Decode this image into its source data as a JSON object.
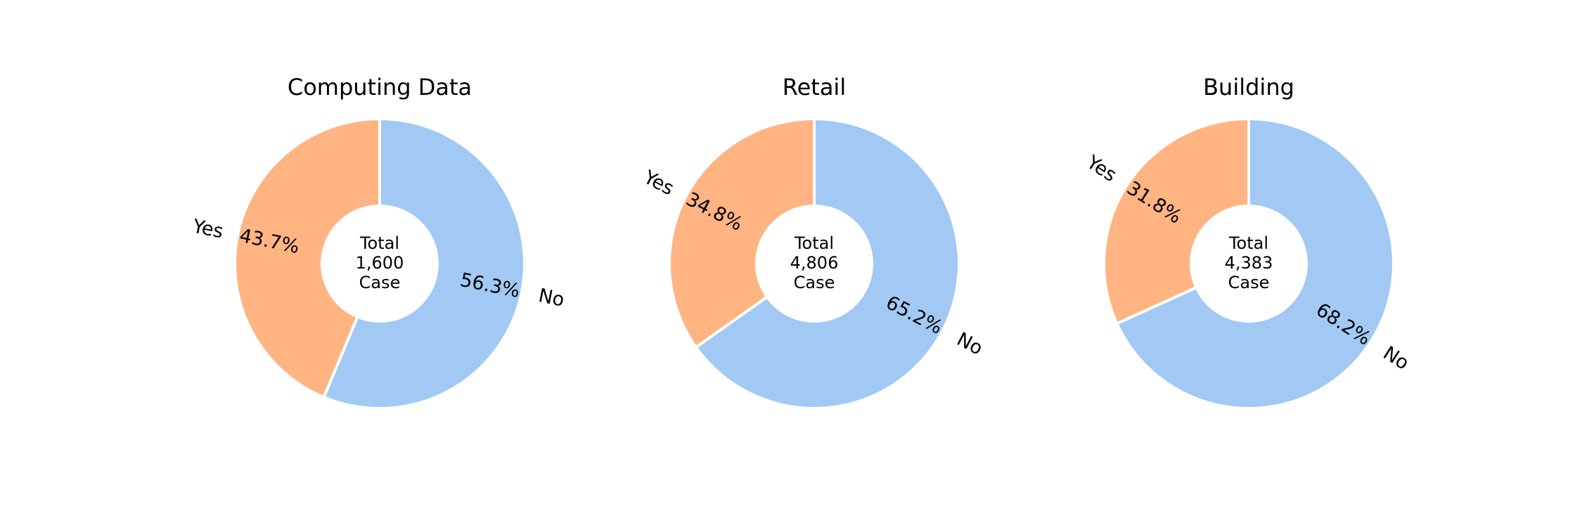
{
  "colors": {
    "yes": "#FFB482",
    "no": "#A1C9F4",
    "separator": "#FFFFFF"
  },
  "chart_data": [
    {
      "type": "pie",
      "title": "Computing Data",
      "center_label": [
        "Total",
        "1,600",
        "Case"
      ],
      "slices": [
        {
          "label": "No",
          "value": 56.3,
          "pct_label": "56.3%"
        },
        {
          "label": "Yes",
          "value": 43.7,
          "pct_label": "43.7%"
        }
      ]
    },
    {
      "type": "pie",
      "title": "Retail",
      "center_label": [
        "Total",
        "4,806",
        "Case"
      ],
      "slices": [
        {
          "label": "No",
          "value": 65.2,
          "pct_label": "65.2%"
        },
        {
          "label": "Yes",
          "value": 34.8,
          "pct_label": "34.8%"
        }
      ]
    },
    {
      "type": "pie",
      "title": "Building",
      "center_label": [
        "Total",
        "4,383",
        "Case"
      ],
      "slices": [
        {
          "label": "No",
          "value": 68.2,
          "pct_label": "68.2%"
        },
        {
          "label": "Yes",
          "value": 31.8,
          "pct_label": "31.8%"
        }
      ]
    }
  ]
}
